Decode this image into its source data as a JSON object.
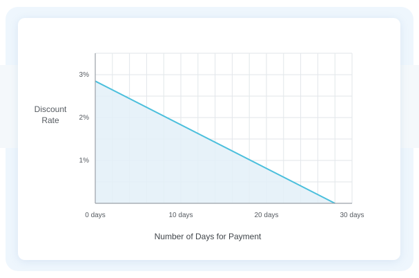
{
  "chart_data": {
    "type": "area",
    "xlabel": "Number of Days for Payment",
    "ylabel": [
      "Discount",
      "Rate"
    ],
    "x_ticks": [
      "0 days",
      "10 days",
      "20 days",
      "30 days"
    ],
    "x_tick_values": [
      0,
      10,
      20,
      30
    ],
    "y_ticks": [
      "1%",
      "2%",
      "3%"
    ],
    "y_tick_values": [
      1,
      2,
      3
    ],
    "xlim": [
      0,
      30
    ],
    "ylim": [
      0,
      3.5
    ],
    "grid": true,
    "series": [
      {
        "x": [
          0,
          28
        ],
        "y": [
          2.85,
          0
        ]
      }
    ],
    "colors": {
      "line": "#4bbfdc",
      "fill": "#e3f0f8",
      "grid": "#e2e6ea",
      "axis": "#9aa0a6"
    }
  }
}
